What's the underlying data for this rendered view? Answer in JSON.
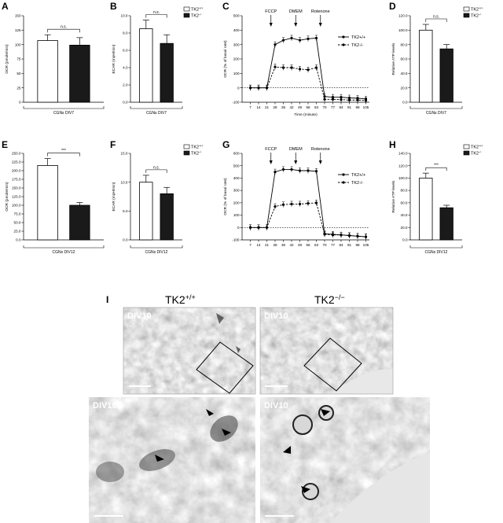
{
  "figure": {
    "em": {
      "panel_label": "I",
      "wt_label": "TK2",
      "wt_sup": "+/+",
      "ko_label": "TK2",
      "ko_sup": "−/−",
      "image_labels": [
        "DIV10",
        "DIV10",
        "DIV10",
        "DIV10"
      ]
    }
  },
  "chart_data": [
    {
      "panel": "A",
      "type": "bar",
      "ylabel": "OCR (pmole/min)",
      "ylim": [
        0,
        150
      ],
      "yticks": [
        0,
        25,
        50,
        75,
        100,
        125,
        150
      ],
      "ytick_labels": [
        "0",
        "25",
        "50",
        "75",
        "100",
        "125",
        "150"
      ],
      "categories": [
        "TK2+/+",
        "TK2-/-"
      ],
      "values": [
        107,
        99
      ],
      "errors": [
        10,
        13
      ],
      "fills": [
        "#ffffff",
        "#1a1a1a"
      ],
      "sig": "n.s.",
      "xlabel": "CGNs DIV7"
    },
    {
      "panel": "B",
      "type": "bar",
      "ylabel": "ECAR (mpH/min)",
      "ylim": [
        0,
        10
      ],
      "yticks": [
        0,
        2,
        4,
        6,
        8,
        10
      ],
      "ytick_labels": [
        "0.0",
        "2.0",
        "4.0",
        "6.0",
        "8.0",
        "10.0"
      ],
      "categories": [
        "TK2+/+",
        "TK2-/-"
      ],
      "values": [
        8.5,
        6.8
      ],
      "errors": [
        1.0,
        1.0
      ],
      "fills": [
        "#ffffff",
        "#1a1a1a"
      ],
      "sig": "n.s.",
      "xlabel": "CGNs DIV7",
      "legend": [
        {
          "label": "TK2",
          "sup": "+/+",
          "fill": "#ffffff"
        },
        {
          "label": "TK2",
          "sup": "-/-",
          "fill": "#1a1a1a"
        }
      ]
    },
    {
      "panel": "C",
      "type": "line",
      "ylabel": "OCR (% of basal rate)",
      "xlabel": "Time (minute)",
      "ylim": [
        -100,
        500
      ],
      "yticks": [
        -100,
        0,
        100,
        200,
        300,
        400,
        500
      ],
      "ytick_labels": [
        "-100",
        "0",
        "100",
        "200",
        "300",
        "400",
        "500"
      ],
      "x": [
        7,
        14,
        21,
        28,
        35,
        42,
        49,
        56,
        63,
        70,
        77,
        84,
        91,
        98,
        105
      ],
      "xtick_labels": [
        "7",
        "14",
        "21",
        "28",
        "35",
        "42",
        "49",
        "56",
        "63",
        "70",
        "77",
        "84",
        "91",
        "98",
        "105"
      ],
      "series": [
        {
          "name": "TK2+/+",
          "values": [
            0,
            0,
            0,
            300,
            330,
            345,
            330,
            340,
            345,
            -60,
            -65,
            -65,
            -70,
            -72,
            -78
          ],
          "dashed": false
        },
        {
          "name": "TK2-/-",
          "values": [
            0,
            0,
            0,
            145,
            140,
            140,
            130,
            125,
            140,
            -80,
            -80,
            -82,
            -85,
            -85,
            -88
          ],
          "dashed": true
        }
      ],
      "treatments": [
        {
          "label": "FCCP",
          "x": 24.5
        },
        {
          "label": "DMEM",
          "x": 45.5
        },
        {
          "label": "Rotenone",
          "x": 66.5
        }
      ]
    },
    {
      "panel": "D",
      "type": "bar",
      "ylabel": "Relative ATP levels",
      "ylim": [
        0,
        120
      ],
      "yticks": [
        0,
        20,
        40,
        60,
        80,
        100,
        120
      ],
      "ytick_labels": [
        "0.0",
        "20.0",
        "40.0",
        "60.0",
        "80.0",
        "100.0",
        "120.0"
      ],
      "categories": [
        "TK2+/+",
        "TK2-/-"
      ],
      "values": [
        100,
        74
      ],
      "errors": [
        8,
        6
      ],
      "fills": [
        "#ffffff",
        "#1a1a1a"
      ],
      "sig": "n.s.",
      "xlabel": "CGNs DIV7",
      "legend": [
        {
          "label": "TK2",
          "sup": "+/+",
          "fill": "#ffffff"
        },
        {
          "label": "TK2",
          "sup": "-/-",
          "fill": "#1a1a1a"
        }
      ]
    },
    {
      "panel": "E",
      "type": "bar",
      "ylabel": "OCR (pmole/min)",
      "ylim": [
        0,
        250
      ],
      "yticks": [
        0,
        25,
        50,
        75,
        100,
        125,
        150,
        175,
        200,
        225,
        250
      ],
      "ytick_labels": [
        "0.0",
        "25.0",
        "50.0",
        "75.0",
        "100.0",
        "125.0",
        "150.0",
        "175.0",
        "200.0",
        "225.0",
        "250.0"
      ],
      "categories": [
        "TK2+/+",
        "TK2-/-"
      ],
      "values": [
        215,
        100
      ],
      "errors": [
        20,
        8
      ],
      "fills": [
        "#ffffff",
        "#1a1a1a"
      ],
      "sig": "***",
      "xlabel": "CGNs DIV12"
    },
    {
      "panel": "F",
      "type": "bar",
      "ylabel": "ECAR (mpH/min)",
      "ylim": [
        0,
        15
      ],
      "yticks": [
        0,
        5,
        10,
        15
      ],
      "ytick_labels": [
        "0.0",
        "5.0",
        "10.0",
        "15.0"
      ],
      "categories": [
        "TK2+/+",
        "TK2-/-"
      ],
      "values": [
        10.0,
        8.0
      ],
      "errors": [
        1.2,
        1.1
      ],
      "fills": [
        "#ffffff",
        "#1a1a1a"
      ],
      "sig": "n.s.",
      "xlabel": "CGNs DIV12",
      "legend": [
        {
          "label": "TK2",
          "sup": "+/+",
          "fill": "#ffffff"
        },
        {
          "label": "TK2",
          "sup": "-/-",
          "fill": "#1a1a1a"
        }
      ]
    },
    {
      "panel": "G",
      "type": "line",
      "ylabel": "OCR (% of basal rate)",
      "xlabel": "",
      "ylim": [
        -100,
        600
      ],
      "yticks": [
        -100,
        0,
        100,
        200,
        300,
        400,
        500,
        600
      ],
      "ytick_labels": [
        "-100",
        "0",
        "100",
        "200",
        "300",
        "400",
        "500",
        "600"
      ],
      "x": [
        7,
        14,
        21,
        28,
        35,
        42,
        49,
        56,
        63,
        70,
        77,
        84,
        91,
        98,
        105
      ],
      "xtick_labels": [
        "7",
        "14",
        "21",
        "28",
        "35",
        "42",
        "49",
        "56",
        "63",
        "70",
        "77",
        "84",
        "91",
        "98",
        "105"
      ],
      "series": [
        {
          "name": "TK2+/+",
          "values": [
            0,
            0,
            0,
            450,
            470,
            470,
            460,
            460,
            455,
            -50,
            -55,
            -60,
            -65,
            -70,
            -75
          ],
          "dashed": false
        },
        {
          "name": "TK2-/-",
          "values": [
            0,
            0,
            0,
            170,
            185,
            190,
            190,
            195,
            200,
            -55,
            -60,
            -60,
            -65,
            -70,
            -75
          ],
          "dashed": true
        }
      ],
      "treatments": [
        {
          "label": "FCCP",
          "x": 24.5
        },
        {
          "label": "DMEM",
          "x": 45.5
        },
        {
          "label": "Rotenone",
          "x": 66.5
        }
      ]
    },
    {
      "panel": "H",
      "type": "bar",
      "ylabel": "Relative ATP levels",
      "ylim": [
        0,
        140
      ],
      "yticks": [
        0,
        20,
        40,
        60,
        80,
        100,
        120,
        140
      ],
      "ytick_labels": [
        "0.0",
        "20.0",
        "40.0",
        "60.0",
        "80.0",
        "100.0",
        "120.0",
        "140.0"
      ],
      "categories": [
        "TK2+/+",
        "TK2-/-"
      ],
      "values": [
        100,
        52
      ],
      "errors": [
        8,
        4
      ],
      "fills": [
        "#ffffff",
        "#1a1a1a"
      ],
      "sig": "***",
      "xlabel": "CGNs DIV12",
      "legend": [
        {
          "label": "TK2",
          "sup": "+/+",
          "fill": "#ffffff"
        },
        {
          "label": "TK2",
          "sup": "-/-",
          "fill": "#1a1a1a"
        }
      ]
    }
  ]
}
